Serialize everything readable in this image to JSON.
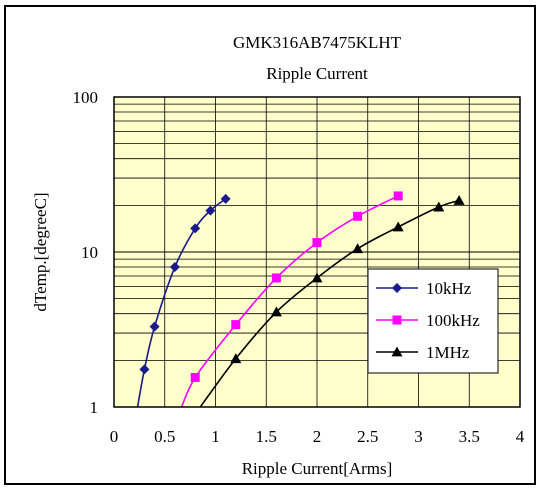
{
  "chart_data": {
    "type": "line",
    "title": "GMK316AB7475KLHT",
    "subtitle": "Ripple Current",
    "xlabel": "Ripple Current[Arms]",
    "ylabel": "dTemp.[degreeC]",
    "xlim": [
      0,
      4
    ],
    "ylim": [
      1,
      100
    ],
    "yscale": "log",
    "grid": true,
    "legend_position": "right",
    "x_ticks": [
      "0",
      "0.5",
      "1",
      "1.5",
      "2",
      "2.5",
      "3",
      "3.5",
      "4"
    ],
    "y_ticks": [
      "1",
      "10",
      "100"
    ],
    "plot_background": "#ffffcc",
    "series": [
      {
        "name": "10kHz",
        "color": "#1a1a8c",
        "marker": "diamond",
        "points": [
          [
            0.3,
            1.75
          ],
          [
            0.4,
            3.3
          ],
          [
            0.6,
            8.0
          ],
          [
            0.8,
            14.2
          ],
          [
            0.95,
            18.5
          ],
          [
            1.1,
            22.0
          ]
        ],
        "curve": [
          [
            0.22,
            0.9
          ],
          [
            0.3,
            1.75
          ],
          [
            0.4,
            3.3
          ],
          [
            0.6,
            8.0
          ],
          [
            0.8,
            14.2
          ],
          [
            0.95,
            18.5
          ],
          [
            1.1,
            22.0
          ]
        ]
      },
      {
        "name": "100kHz",
        "color": "#ff00ff",
        "marker": "square",
        "points": [
          [
            0.8,
            1.55
          ],
          [
            1.2,
            3.4
          ],
          [
            1.6,
            6.8
          ],
          [
            2.0,
            11.5
          ],
          [
            2.4,
            17.0
          ],
          [
            2.8,
            23.0
          ]
        ],
        "curve": [
          [
            0.64,
            0.9
          ],
          [
            0.8,
            1.55
          ],
          [
            1.2,
            3.4
          ],
          [
            1.6,
            6.8
          ],
          [
            2.0,
            11.5
          ],
          [
            2.4,
            17.0
          ],
          [
            2.8,
            23.0
          ]
        ]
      },
      {
        "name": "1MHz",
        "color": "#000000",
        "marker": "triangle",
        "points": [
          [
            1.2,
            2.05
          ],
          [
            1.6,
            4.1
          ],
          [
            2.0,
            6.8
          ],
          [
            2.4,
            10.5
          ],
          [
            2.8,
            14.5
          ],
          [
            3.2,
            19.5
          ],
          [
            3.4,
            21.5
          ]
        ],
        "curve": [
          [
            0.8,
            0.9
          ],
          [
            1.2,
            2.05
          ],
          [
            1.6,
            4.1
          ],
          [
            2.0,
            6.8
          ],
          [
            2.4,
            10.5
          ],
          [
            2.8,
            14.5
          ],
          [
            3.2,
            19.5
          ],
          [
            3.4,
            21.5
          ]
        ]
      }
    ]
  }
}
